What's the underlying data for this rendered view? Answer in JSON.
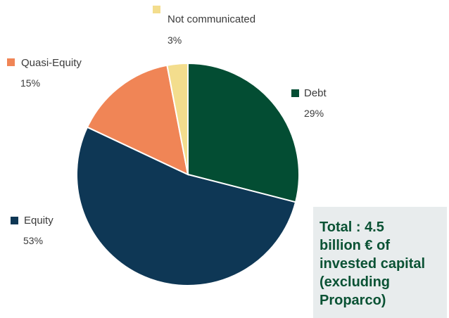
{
  "chart_data": {
    "type": "pie",
    "slices": [
      {
        "label": "Debt",
        "value": 29,
        "display": "29%",
        "color": "#034d33"
      },
      {
        "label": "Equity",
        "value": 53,
        "display": "53%",
        "color": "#0e3755"
      },
      {
        "label": "Quasi-Equity",
        "value": 15,
        "display": "15%",
        "color": "#f08556"
      },
      {
        "label": "Not communicated",
        "value": 3,
        "display": "3%",
        "color": "#f3dd8d"
      }
    ],
    "legend_placement": "around the pie, next to each slice"
  },
  "total_note": "Total : 4.5\nbillion € of\ninvested capital\n(excluding\nProparco)"
}
